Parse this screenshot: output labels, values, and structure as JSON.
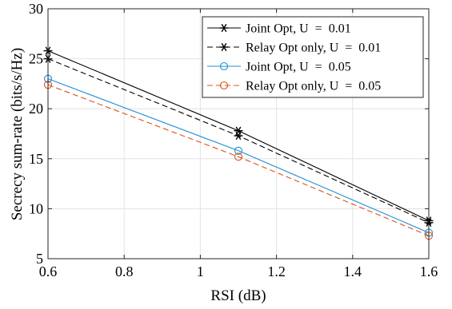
{
  "chart_data": {
    "type": "line",
    "title": "",
    "xlabel": "RSI (dB)",
    "ylabel": "Secrecy sum-rate (bits/s/Hz)",
    "xlim": [
      0.6,
      1.6
    ],
    "ylim": [
      5,
      30
    ],
    "xticks": [
      0.6,
      0.8,
      1.0,
      1.2,
      1.4,
      1.6
    ],
    "xtick_labels": [
      "0.6",
      "0.8",
      "1",
      "1.2",
      "1.4",
      "1.6"
    ],
    "yticks": [
      5,
      10,
      15,
      20,
      25,
      30
    ],
    "ytick_labels": [
      "5",
      "10",
      "15",
      "20",
      "25",
      "30"
    ],
    "grid": true,
    "legend_position": "top-right",
    "series": [
      {
        "name": "Joint Opt, U  =  0.01",
        "color": "#000000",
        "dash": "solid",
        "marker": "asterisk",
        "x": [
          0.6,
          1.1,
          1.6
        ],
        "values": [
          25.8,
          17.8,
          8.8
        ]
      },
      {
        "name": "Relay Opt only, U  =  0.01",
        "color": "#000000",
        "dash": "dashed",
        "marker": "asterisk",
        "x": [
          0.6,
          1.1,
          1.6
        ],
        "values": [
          25.0,
          17.3,
          8.6
        ]
      },
      {
        "name": "Joint Opt, U  =  0.05",
        "color": "#1f8dd6",
        "dash": "solid",
        "marker": "circle",
        "x": [
          0.6,
          1.1,
          1.6
        ],
        "values": [
          23.0,
          15.8,
          7.6
        ]
      },
      {
        "name": "Relay Opt only, U  =  0.05",
        "color": "#d9541a",
        "dash": "dashed",
        "marker": "circle",
        "x": [
          0.6,
          1.1,
          1.6
        ],
        "values": [
          22.4,
          15.2,
          7.3
        ]
      }
    ]
  }
}
